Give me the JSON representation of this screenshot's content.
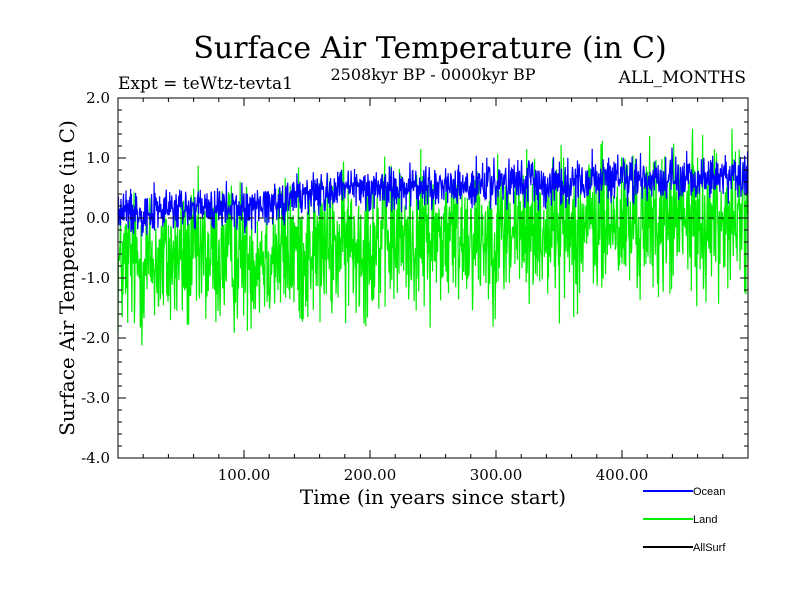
{
  "chart_data": {
    "type": "line",
    "title": "Surface Air Temperature (in C)",
    "subtitle": "2508kyr BP - 0000kyr BP",
    "expt_label": "Expt = teWtz-tevta1",
    "months_label": "ALL_MONTHS",
    "xlabel": "Time (in years since start)",
    "ylabel": "Surface Air Temperature (in C)",
    "xlim": [
      0,
      500
    ],
    "ylim": [
      -4.0,
      2.0
    ],
    "x_ticks": [
      100,
      200,
      300,
      400
    ],
    "x_tick_labels": [
      "100.00",
      "200.00",
      "300.00",
      "400.00"
    ],
    "y_ticks": [
      -4.0,
      -3.0,
      -2.0,
      -1.0,
      0.0,
      1.0,
      2.0
    ],
    "y_tick_labels": [
      "-4.0",
      "-3.0",
      "-2.0",
      "-1.0",
      "0.0",
      "1.0",
      "2.0"
    ],
    "reference_line": {
      "y": 0.0,
      "style": "dashed"
    },
    "series": [
      {
        "name": "Ocean",
        "color": "#0000ff",
        "anchor_years": [
          0,
          50,
          100,
          130,
          150,
          200,
          250,
          300,
          350,
          400,
          450,
          500
        ],
        "anchor_means": [
          0.1,
          0.15,
          0.15,
          0.3,
          0.4,
          0.5,
          0.5,
          0.55,
          0.6,
          0.65,
          0.65,
          0.7
        ],
        "noise_amplitude": 0.55
      },
      {
        "name": "Land",
        "color": "#00ee00",
        "anchor_years": [
          0,
          50,
          100,
          150,
          200,
          250,
          300,
          350,
          400,
          450,
          500
        ],
        "anchor_means": [
          -0.8,
          -0.7,
          -0.6,
          -0.55,
          -0.4,
          -0.3,
          -0.25,
          -0.15,
          -0.1,
          -0.05,
          0.0
        ],
        "noise_amplitude": 1.8
      },
      {
        "name": "AllSurf",
        "color": "#000000"
      }
    ]
  }
}
